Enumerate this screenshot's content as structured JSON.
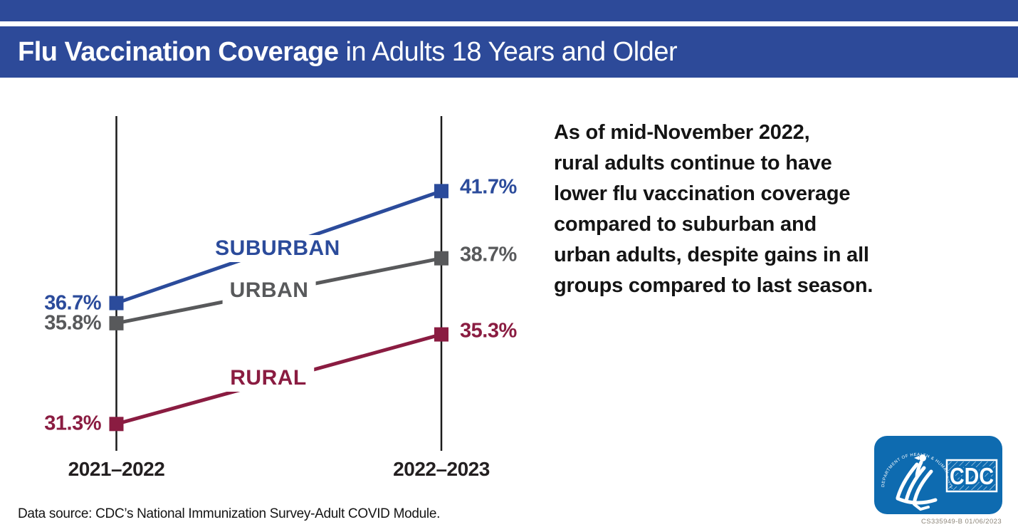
{
  "header": {
    "title_bold": "Flu Vaccination Coverage",
    "title_regular": " in Adults 18 Years and Older"
  },
  "chart_data": {
    "type": "line",
    "subtype": "slope-chart",
    "categories": [
      "2021–2022",
      "2022–2023"
    ],
    "series": [
      {
        "name": "SUBURBAN",
        "values": [
          36.7,
          41.7
        ],
        "color": "#2b4b9b"
      },
      {
        "name": "URBAN",
        "values": [
          35.8,
          38.7
        ],
        "color": "#58595b"
      },
      {
        "name": "RURAL",
        "values": [
          31.3,
          35.3
        ],
        "color": "#8a1c41"
      }
    ],
    "value_suffix": "%",
    "ylim": [
      30,
      45
    ],
    "grid": false,
    "legend_position": "labels-on-lines",
    "axis_color": "#1a1a1a"
  },
  "callout": {
    "text": "As of mid-November 2022,\nrural adults continue to have\nlower flu vaccination coverage\ncompared to suburban and\nurban adults, despite gains in all\ngroups compared to last season."
  },
  "footer": {
    "data_source": "Data source: CDC’s National Immunization Survey-Adult COVID Module.",
    "doc_number": "CS335949-B 01/06/2023"
  },
  "logo": {
    "cdc_label": "CDC",
    "arc_text": "DEPARTMENT OF HEALTH & HUMAN SERVICES • USA"
  },
  "colors": {
    "band_blue": "#2d4a99",
    "suburban_blue": "#2b4b9b",
    "urban_gray": "#58595b",
    "rural_maroon": "#8a1c41",
    "logo_blue": "#0e6bb0",
    "text_black": "#141414"
  }
}
